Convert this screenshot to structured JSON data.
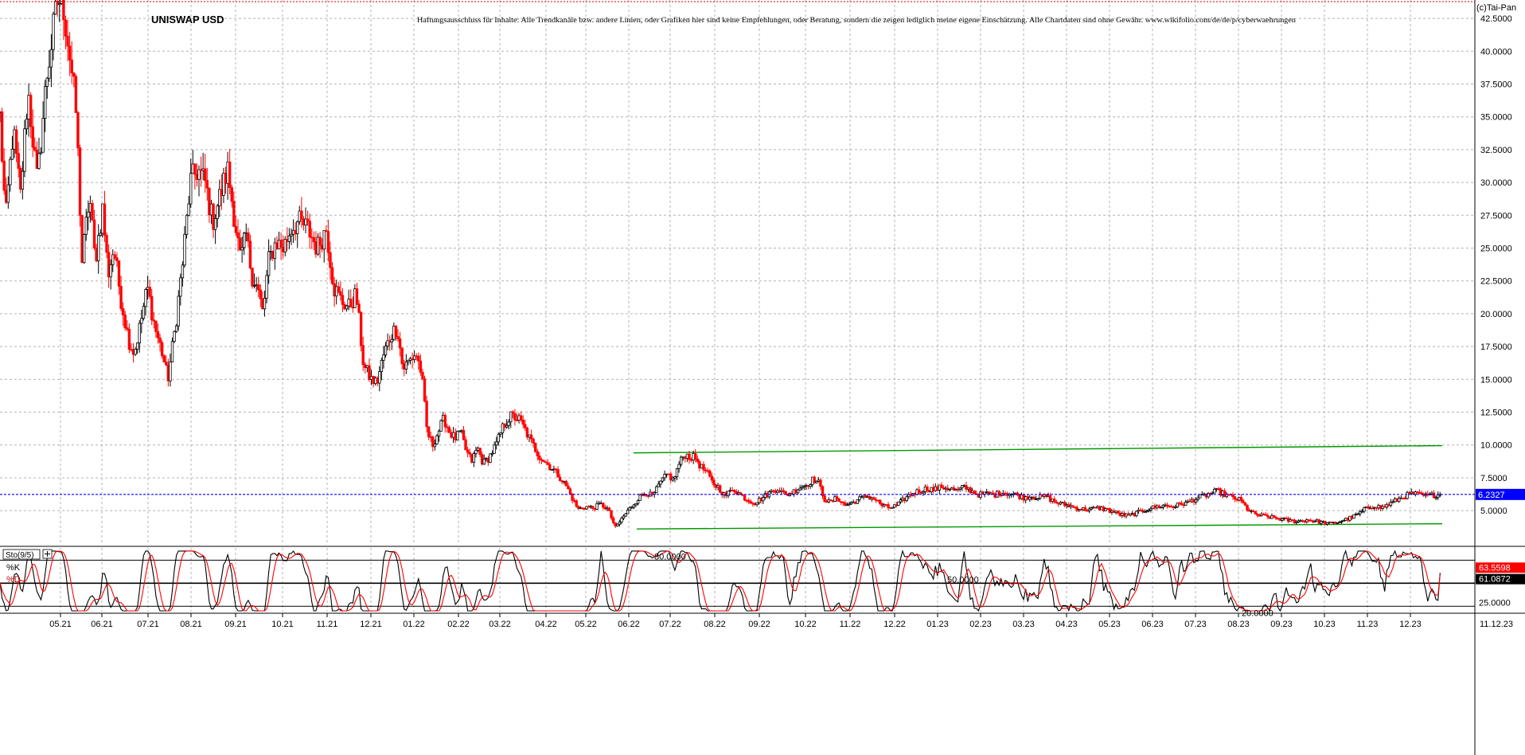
{
  "chart_data": {
    "type": "candlestick",
    "title": "UNISWAP USD",
    "disclaimer": "Haftungsausschluss für Inhalte: Alle Trendkanäle bzw. andere Linien, oder Grafiken hier sind keine Empfehlungen, oder Beratung, sondern die zeigen lediglich meine eigene Einschätzung. Alle Chartdaten sind ohne Gewähr.  www.wikifolio.com/de/de/p/cyberwaehrungen",
    "copyright": "(c)Tai-Pan",
    "price_axis": {
      "ylim": [
        2.4,
        43.9
      ],
      "ticks": [
        5,
        7.5,
        10,
        12.5,
        15,
        17.5,
        20,
        22.5,
        25,
        27.5,
        30,
        32.5,
        35,
        37.5,
        40,
        42.5
      ],
      "tick_labels": [
        "5.0000",
        "7.5000",
        "10.0000",
        "12.5000",
        "15.0000",
        "17.5000",
        "20.0000",
        "22.5000",
        "25.0000",
        "27.5000",
        "30.0000",
        "32.5000",
        "35.0000",
        "37.5000",
        "40.0000",
        "42.5000"
      ]
    },
    "x_axis": {
      "labels": [
        "05.21",
        "06.21",
        "07.21",
        "08.21",
        "09.21",
        "10.21",
        "11.21",
        "12.21",
        "01.22",
        "02.22",
        "03.22",
        "04.22",
        "05.22",
        "06.22",
        "07.22",
        "08.22",
        "09.22",
        "10.22",
        "11.22",
        "12.22",
        "01.23",
        "02.23",
        "03.23",
        "04.23",
        "05.23",
        "06.23",
        "07.23",
        "08.23",
        "09.23",
        "10.23",
        "11.23",
        "12.23",
        "11.12.23"
      ]
    },
    "last_price": {
      "value": 6.2327,
      "label": "6.2327",
      "color": "#0000ff"
    },
    "bottom_reference": 3.3,
    "price_path": [
      [
        0,
        35
      ],
      [
        6,
        27
      ],
      [
        14,
        34
      ],
      [
        22,
        29
      ],
      [
        30,
        37
      ],
      [
        40,
        30
      ],
      [
        50,
        38
      ],
      [
        62,
        44
      ],
      [
        68,
        43.5
      ],
      [
        76,
        39
      ],
      [
        82,
        35
      ],
      [
        88,
        24
      ],
      [
        96,
        29
      ],
      [
        102,
        24
      ],
      [
        110,
        28
      ],
      [
        116,
        23
      ],
      [
        122,
        25
      ],
      [
        130,
        21
      ],
      [
        138,
        18
      ],
      [
        144,
        17
      ],
      [
        150,
        19
      ],
      [
        158,
        22
      ],
      [
        166,
        19
      ],
      [
        174,
        17
      ],
      [
        180,
        15
      ],
      [
        188,
        19
      ],
      [
        196,
        24
      ],
      [
        204,
        30
      ],
      [
        212,
        31
      ],
      [
        220,
        30
      ],
      [
        228,
        27
      ],
      [
        236,
        29
      ],
      [
        244,
        31
      ],
      [
        252,
        27
      ],
      [
        258,
        24
      ],
      [
        264,
        26
      ],
      [
        270,
        23
      ],
      [
        276,
        22
      ],
      [
        282,
        20
      ],
      [
        288,
        24
      ],
      [
        296,
        25.5
      ],
      [
        304,
        25
      ],
      [
        312,
        26.5
      ],
      [
        320,
        27
      ],
      [
        330,
        26.5
      ],
      [
        340,
        25
      ],
      [
        350,
        26.5
      ],
      [
        358,
        22
      ],
      [
        366,
        21
      ],
      [
        374,
        20.5
      ],
      [
        382,
        21.5
      ],
      [
        390,
        16
      ],
      [
        398,
        15
      ],
      [
        404,
        14.7
      ],
      [
        412,
        17
      ],
      [
        420,
        18.5
      ],
      [
        426,
        19
      ],
      [
        432,
        15.8
      ],
      [
        440,
        16.5
      ],
      [
        446,
        17
      ],
      [
        452,
        15.5
      ],
      [
        458,
        11
      ],
      [
        464,
        10
      ],
      [
        470,
        11
      ],
      [
        476,
        12
      ],
      [
        482,
        11
      ],
      [
        488,
        10.5
      ],
      [
        494,
        11
      ],
      [
        500,
        9.5
      ],
      [
        506,
        8.8
      ],
      [
        512,
        9.8
      ],
      [
        518,
        8.6
      ],
      [
        524,
        9
      ],
      [
        532,
        10
      ],
      [
        540,
        11.5
      ],
      [
        548,
        12.2
      ],
      [
        556,
        12
      ],
      [
        562,
        11.3
      ],
      [
        570,
        10.2
      ],
      [
        578,
        9.2
      ],
      [
        586,
        8.6
      ],
      [
        594,
        8.1
      ],
      [
        602,
        7.4
      ],
      [
        608,
        6.8
      ],
      [
        614,
        5.9
      ],
      [
        620,
        5.1
      ],
      [
        628,
        5.3
      ],
      [
        636,
        5.2
      ],
      [
        644,
        5.5
      ],
      [
        652,
        5.1
      ],
      [
        660,
        3.7
      ],
      [
        668,
        4.5
      ],
      [
        676,
        5.2
      ],
      [
        684,
        5.9
      ],
      [
        692,
        6.4
      ],
      [
        700,
        6.1
      ],
      [
        708,
        7.1
      ],
      [
        716,
        7.8
      ],
      [
        722,
        7.3
      ],
      [
        728,
        8.5
      ],
      [
        734,
        9.3
      ],
      [
        740,
        9.1
      ],
      [
        746,
        9
      ],
      [
        752,
        8.3
      ],
      [
        758,
        7.9
      ],
      [
        764,
        7.1
      ],
      [
        770,
        6.8
      ],
      [
        778,
        6.1
      ],
      [
        786,
        6.7
      ],
      [
        794,
        6.2
      ],
      [
        802,
        5.8
      ],
      [
        810,
        5.6
      ],
      [
        818,
        6
      ],
      [
        826,
        6.4
      ],
      [
        834,
        6.7
      ],
      [
        842,
        6.2
      ],
      [
        850,
        6.4
      ],
      [
        858,
        6.8
      ],
      [
        866,
        7
      ],
      [
        872,
        7.4
      ],
      [
        878,
        7.1
      ],
      [
        884,
        5.9
      ],
      [
        890,
        5.6
      ],
      [
        898,
        6
      ],
      [
        906,
        5.4
      ],
      [
        914,
        5.6
      ],
      [
        922,
        5.9
      ],
      [
        930,
        6.1
      ],
      [
        938,
        5.9
      ],
      [
        946,
        5.4
      ],
      [
        954,
        5.2
      ],
      [
        962,
        5.4
      ],
      [
        970,
        5.9
      ],
      [
        978,
        6.3
      ],
      [
        986,
        6.5
      ],
      [
        994,
        6.7
      ],
      [
        1002,
        6.6
      ],
      [
        1010,
        6.8
      ],
      [
        1018,
        6.7
      ],
      [
        1026,
        6.5
      ],
      [
        1034,
        6.8
      ],
      [
        1042,
        6.5
      ],
      [
        1050,
        6.2
      ],
      [
        1058,
        6.3
      ],
      [
        1066,
        6.2
      ],
      [
        1074,
        6.4
      ],
      [
        1082,
        6.3
      ],
      [
        1090,
        6.2
      ],
      [
        1098,
        6
      ],
      [
        1106,
        6.1
      ],
      [
        1114,
        6
      ],
      [
        1122,
        6.1
      ],
      [
        1130,
        5.7
      ],
      [
        1138,
        5.5
      ],
      [
        1146,
        5.4
      ],
      [
        1154,
        5.2
      ],
      [
        1162,
        5.1
      ],
      [
        1170,
        5.1
      ],
      [
        1178,
        5.2
      ],
      [
        1186,
        5.1
      ],
      [
        1194,
        4.9
      ],
      [
        1202,
        4.7
      ],
      [
        1210,
        4.6
      ],
      [
        1218,
        4.8
      ],
      [
        1226,
        5
      ],
      [
        1234,
        5.2
      ],
      [
        1242,
        5.3
      ],
      [
        1250,
        5.4
      ],
      [
        1258,
        5.3
      ],
      [
        1266,
        5.5
      ],
      [
        1274,
        5.6
      ],
      [
        1282,
        5.9
      ],
      [
        1290,
        6.1
      ],
      [
        1298,
        6.3
      ],
      [
        1306,
        6.5
      ],
      [
        1314,
        6.2
      ],
      [
        1322,
        6
      ],
      [
        1330,
        5.8
      ],
      [
        1338,
        5.1
      ],
      [
        1346,
        4.7
      ],
      [
        1354,
        4.6
      ],
      [
        1362,
        4.5
      ],
      [
        1370,
        4.4
      ],
      [
        1378,
        4.3
      ],
      [
        1386,
        4.2
      ],
      [
        1394,
        4.2
      ],
      [
        1402,
        4.3
      ],
      [
        1410,
        4.2
      ],
      [
        1418,
        4.1
      ],
      [
        1426,
        4
      ],
      [
        1434,
        4.1
      ],
      [
        1442,
        4.3
      ],
      [
        1450,
        4.5
      ],
      [
        1458,
        4.8
      ],
      [
        1466,
        5.2
      ],
      [
        1474,
        5.4
      ],
      [
        1482,
        5.2
      ],
      [
        1490,
        5.5
      ],
      [
        1498,
        5.8
      ],
      [
        1506,
        6.1
      ],
      [
        1514,
        6.3
      ],
      [
        1522,
        6.2
      ],
      [
        1530,
        6.1
      ],
      [
        1538,
        6.2
      ],
      [
        1545,
        6.2327
      ]
    ],
    "trendlines": [
      {
        "x0": 796,
        "y0": 9.4,
        "x1": 1812,
        "y1": 9.95,
        "color": "#009900"
      },
      {
        "x0": 800,
        "y0": 3.6,
        "x1": 1812,
        "y1": 4.0,
        "color": "#009900"
      }
    ],
    "oscillator": {
      "label": "Sto(9/5)",
      "k_label": "%K",
      "d_label": "%D",
      "ylim": [
        13,
        96
      ],
      "levels": [
        80,
        50,
        20
      ],
      "level_labels": [
        "80.0000",
        "50.0000",
        "20.0000"
      ],
      "axis_label": "25.0000",
      "axis_value": 25,
      "k_value": 63.5598,
      "k_value_label": "63.5598",
      "d_value": 61.0872,
      "d_value_label": "61.0872",
      "k_color": "#000000",
      "d_color": "#ff0000"
    },
    "colors": {
      "up": "#000000",
      "down": "#ff0000",
      "grid": "#b4b4b4",
      "text": "#000000"
    }
  }
}
